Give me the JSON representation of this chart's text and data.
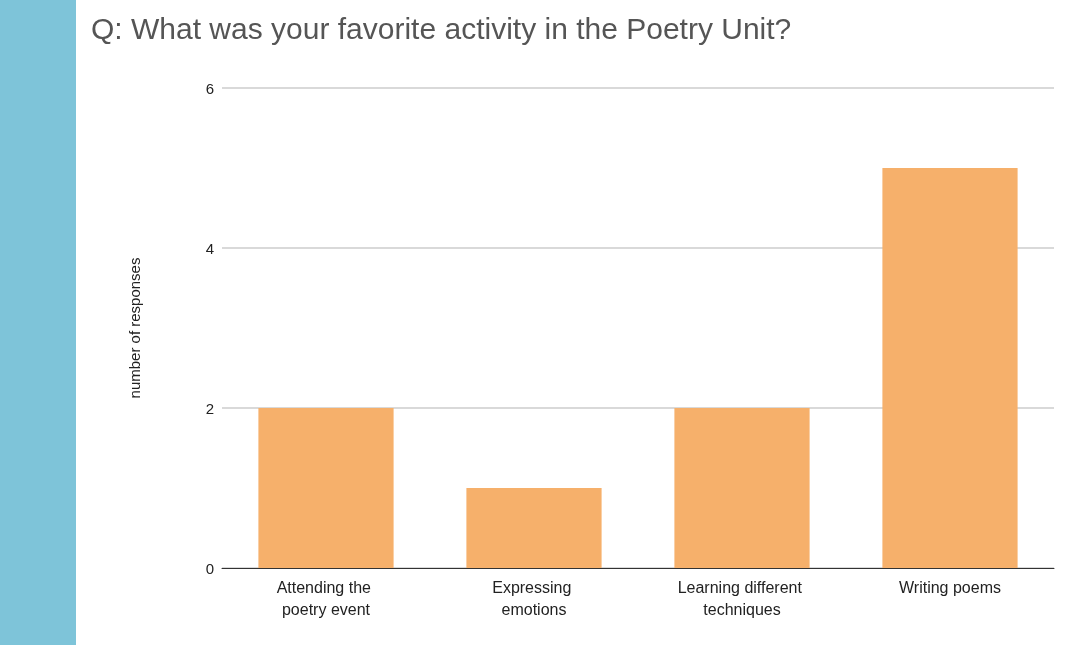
{
  "chart_data": {
    "type": "bar",
    "title": "Q: What was your favorite activity in the Poetry Unit?",
    "ylabel": "number of responses",
    "categories": [
      "Attending the poetry event",
      "Expressing emotions",
      "Learning different techniques",
      "Writing poems"
    ],
    "values": [
      2,
      1,
      2,
      5
    ],
    "color": "#f6b06b",
    "ylim": [
      0,
      6
    ],
    "yticks": [
      0,
      2,
      4,
      6
    ],
    "grid": "y"
  }
}
